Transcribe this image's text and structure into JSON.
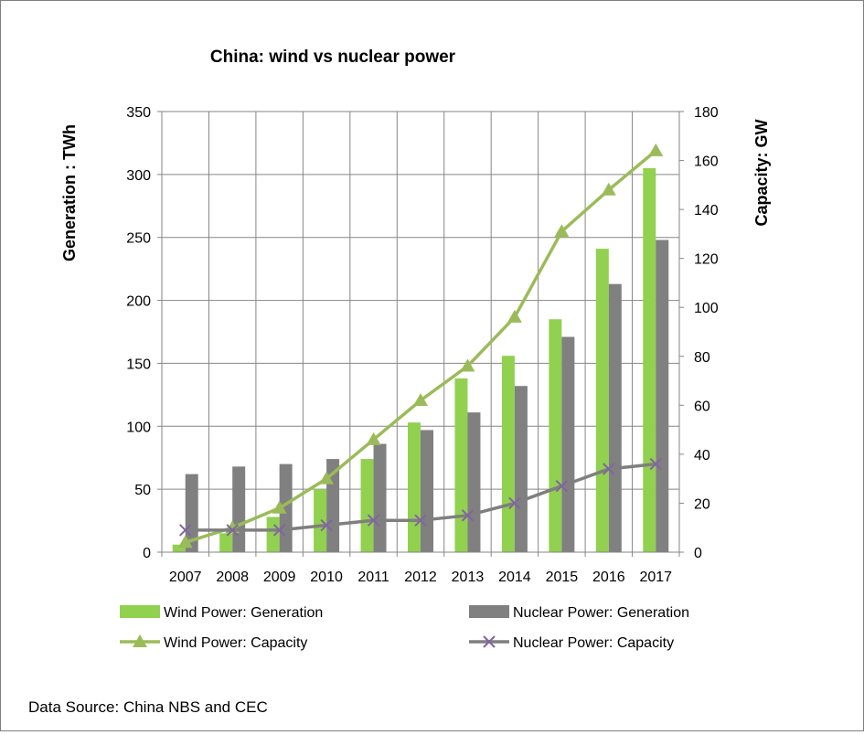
{
  "chart_data": {
    "type": "bar",
    "title": "China: wind vs nuclear power",
    "categories": [
      "2007",
      "2008",
      "2009",
      "2010",
      "2011",
      "2012",
      "2013",
      "2014",
      "2015",
      "2016",
      "2017"
    ],
    "y_left": {
      "label": "Generation : TWh",
      "lim": [
        0,
        350
      ],
      "ticks": [
        "0",
        "50",
        "100",
        "150",
        "200",
        "250",
        "300",
        "350"
      ]
    },
    "y_right": {
      "label": "Capacity: GW",
      "lim": [
        0,
        180
      ],
      "ticks": [
        "0",
        "20",
        "40",
        "60",
        "80",
        "100",
        "120",
        "140",
        "160",
        "180"
      ]
    },
    "grid": true,
    "legend_position": "bottom",
    "series": [
      {
        "name": "Wind Power: Generation",
        "type": "bar",
        "axis": "left",
        "color": "#92d050",
        "values": [
          6,
          15,
          28,
          50,
          74,
          103,
          138,
          156,
          185,
          241,
          305
        ]
      },
      {
        "name": "Nuclear Power: Generation",
        "type": "bar",
        "axis": "left",
        "color": "#808080",
        "values": [
          62,
          68,
          70,
          74,
          86,
          97,
          111,
          132,
          171,
          213,
          248
        ]
      },
      {
        "name": "Wind Power: Capacity",
        "type": "line",
        "marker": "triangle",
        "axis": "right",
        "color": "#9bbb59",
        "values": [
          4,
          10,
          18,
          30,
          46,
          62,
          76,
          96,
          131,
          148,
          164
        ]
      },
      {
        "name": "Nuclear Power: Capacity",
        "type": "line",
        "marker": "x",
        "axis": "right",
        "color": "#7f7f7f",
        "marker_color": "#8064a2",
        "values": [
          9,
          9,
          9,
          11,
          13,
          13,
          15,
          20,
          27,
          34,
          36
        ]
      }
    ]
  },
  "footer": {
    "source": "Data Source: China NBS and CEC"
  }
}
